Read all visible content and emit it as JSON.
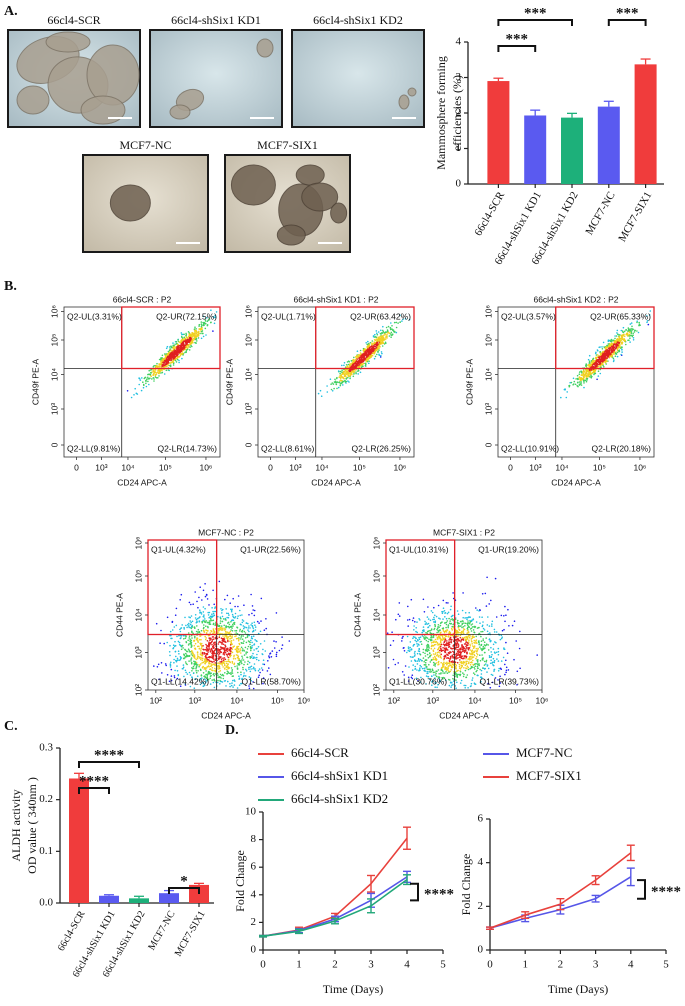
{
  "figure": {
    "panel_labels": [
      "A.",
      "B.",
      "C.",
      "D."
    ],
    "micrographs": [
      "66cl4-SCR",
      "66cl4-shSix1 KD1",
      "66cl4-shSix1 KD2",
      "MCF7-NC",
      "MCF7-SIX1"
    ],
    "flow_plots": [
      {
        "title": "66cl4-SCR : P2",
        "xlabel": "CD24 APC-A",
        "ylabel": "CD49f PE-A",
        "xticks": [
          "0",
          "10³",
          "10⁴",
          "10⁵",
          "10⁶"
        ],
        "yticks": [
          "0",
          "10³",
          "10⁴",
          "10⁵",
          "10⁶"
        ],
        "quadrants": [
          "Q2-UL(3.31%)",
          "Q2-UR(72.15%)",
          "Q2-LL(9.81%)",
          "Q2-LR(14.73%)"
        ]
      },
      {
        "title": "66cl4-shSix1 KD1 : P2",
        "xlabel": "CD24 APC-A",
        "ylabel": "CD49f PE-A",
        "xticks": [
          "0",
          "10³",
          "10⁴",
          "10⁵",
          "10⁶"
        ],
        "yticks": [
          "0",
          "10³",
          "10⁴",
          "10⁵",
          "10⁶"
        ],
        "quadrants": [
          "Q2-UL(1.71%)",
          "Q2-UR(63.42%)",
          "Q2-LL(8.61%)",
          "Q2-LR(26.25%)"
        ]
      },
      {
        "title": "66cl4-shSix1 KD2 : P2",
        "xlabel": "CD24 APC-A",
        "ylabel": "CD49f PE-A",
        "xticks": [
          "0",
          "10³",
          "10⁴",
          "10⁵",
          "10⁶"
        ],
        "yticks": [
          "0",
          "10³",
          "10⁴",
          "10⁵",
          "10⁶"
        ],
        "quadrants": [
          "Q2-UL(3.57%)",
          "Q2-UR(65.33%)",
          "Q2-LL(10.91%)",
          "Q2-LR(20.18%)"
        ]
      },
      {
        "title": "MCF7-NC : P2",
        "xlabel": "CD24 APC-A",
        "ylabel": "CD44 PE-A",
        "xticks": [
          "10²",
          "10³",
          "10⁴",
          "10⁵",
          "10⁶"
        ],
        "yticks": [
          "10²",
          "10³",
          "10⁴",
          "10⁵",
          "10⁶"
        ],
        "quadrants": [
          "Q1-UL(4.32%)",
          "Q1-UR(22.56%)",
          "Q1-LL(14.42%)",
          "Q1-LR(58.70%)"
        ]
      },
      {
        "title": "MCF7-SIX1 : P2",
        "xlabel": "CD24 APC-A",
        "ylabel": "CD44 PE-A",
        "xticks": [
          "10²",
          "10³",
          "10⁴",
          "10⁵",
          "10⁶"
        ],
        "yticks": [
          "10²",
          "10³",
          "10⁴",
          "10⁵",
          "10⁶"
        ],
        "quadrants": [
          "Q1-UL(10.31%)",
          "Q1-UR(19.20%)",
          "Q1-LL(30.76%)",
          "Q1-LR(39.73%)"
        ]
      }
    ]
  },
  "chart_data": [
    {
      "type": "bar",
      "ylabel": [
        "Mammosphere forming",
        "efficiencies (%)"
      ],
      "categories": [
        "66cl4-SCR",
        "66cl4-shSix1 KD1",
        "66cl4-shSix1 KD2",
        "MCF7-NC",
        "MCF7-SIX1"
      ],
      "values": [
        2.9,
        1.93,
        1.87,
        2.18,
        3.37
      ],
      "errors": [
        0.08,
        0.15,
        0.12,
        0.15,
        0.15
      ],
      "colors": [
        "#f03c3c",
        "#5a5af0",
        "#1db07a",
        "#5a5af0",
        "#f03c3c"
      ],
      "ylim": [
        0,
        4
      ],
      "yticks": [
        0,
        1,
        2,
        3,
        4
      ],
      "annotations": [
        "***",
        "***",
        "***"
      ]
    },
    {
      "type": "bar",
      "ylabel": [
        "ALDH activity",
        "OD value ( 340nm )"
      ],
      "categories": [
        "66cl4-SCR",
        "66cl4-shSix1 KD1",
        "66cl4-shSix1 KD2",
        "MCF7-NC",
        "MCF7-SIX1"
      ],
      "values": [
        0.241,
        0.014,
        0.009,
        0.019,
        0.035
      ],
      "errors": [
        0.01,
        0.002,
        0.004,
        0.005,
        0.003
      ],
      "colors": [
        "#f03c3c",
        "#5a5af0",
        "#1db07a",
        "#5a5af0",
        "#f03c3c"
      ],
      "ylim": [
        0,
        0.3
      ],
      "yticks": [
        {
          "value": 0,
          "label": "0.0"
        },
        0.1,
        0.2,
        0.3
      ],
      "annotations": [
        "****",
        "****",
        "*"
      ]
    },
    {
      "type": "line",
      "xlabel": "Time (Days)",
      "ylabel": "Fold Change",
      "x": [
        0,
        1,
        2,
        3,
        4
      ],
      "series": [
        {
          "name": "66cl4-SCR",
          "color": "#e8413c",
          "values": [
            1,
            1.45,
            2.45,
            4.8,
            8.1
          ],
          "errors": [
            0.05,
            0.2,
            0.2,
            0.6,
            0.8
          ]
        },
        {
          "name": "66cl4-shSix1 KD1",
          "color": "#5656e8",
          "values": [
            1,
            1.4,
            2.25,
            3.6,
            5.3
          ],
          "errors": [
            0.05,
            0.15,
            0.2,
            0.5,
            0.4
          ]
        },
        {
          "name": "66cl4-shSix1 KD2",
          "color": "#22a87a",
          "values": [
            1,
            1.35,
            2.1,
            3.2,
            5.1
          ],
          "errors": [
            0.05,
            0.15,
            0.2,
            0.5,
            0.35
          ]
        }
      ],
      "xlim": [
        0,
        5
      ],
      "xticks": [
        0,
        1,
        2,
        3,
        4,
        5
      ],
      "ylim": [
        0,
        10
      ],
      "yticks": [
        0,
        2,
        4,
        6,
        8,
        10
      ],
      "annotations": [
        "****"
      ]
    },
    {
      "type": "line",
      "xlabel": "Time (Days)",
      "ylabel": "Fold Change",
      "x": [
        0,
        1,
        2,
        3,
        4
      ],
      "series": [
        {
          "name": "MCF7-NC",
          "color": "#5656e8",
          "values": [
            1,
            1.45,
            1.85,
            2.35,
            3.35
          ],
          "errors": [
            0.05,
            0.15,
            0.2,
            0.15,
            0.4
          ]
        },
        {
          "name": "MCF7-SIX1",
          "color": "#e8413c",
          "values": [
            1,
            1.6,
            2.1,
            3.2,
            4.45
          ],
          "errors": [
            0.05,
            0.15,
            0.25,
            0.2,
            0.35
          ]
        }
      ],
      "xlim": [
        0,
        5
      ],
      "xticks": [
        0,
        1,
        2,
        3,
        4,
        5
      ],
      "ylim": [
        0,
        6
      ],
      "yticks": [
        0,
        2,
        4,
        6
      ],
      "annotations": [
        "****"
      ]
    }
  ]
}
